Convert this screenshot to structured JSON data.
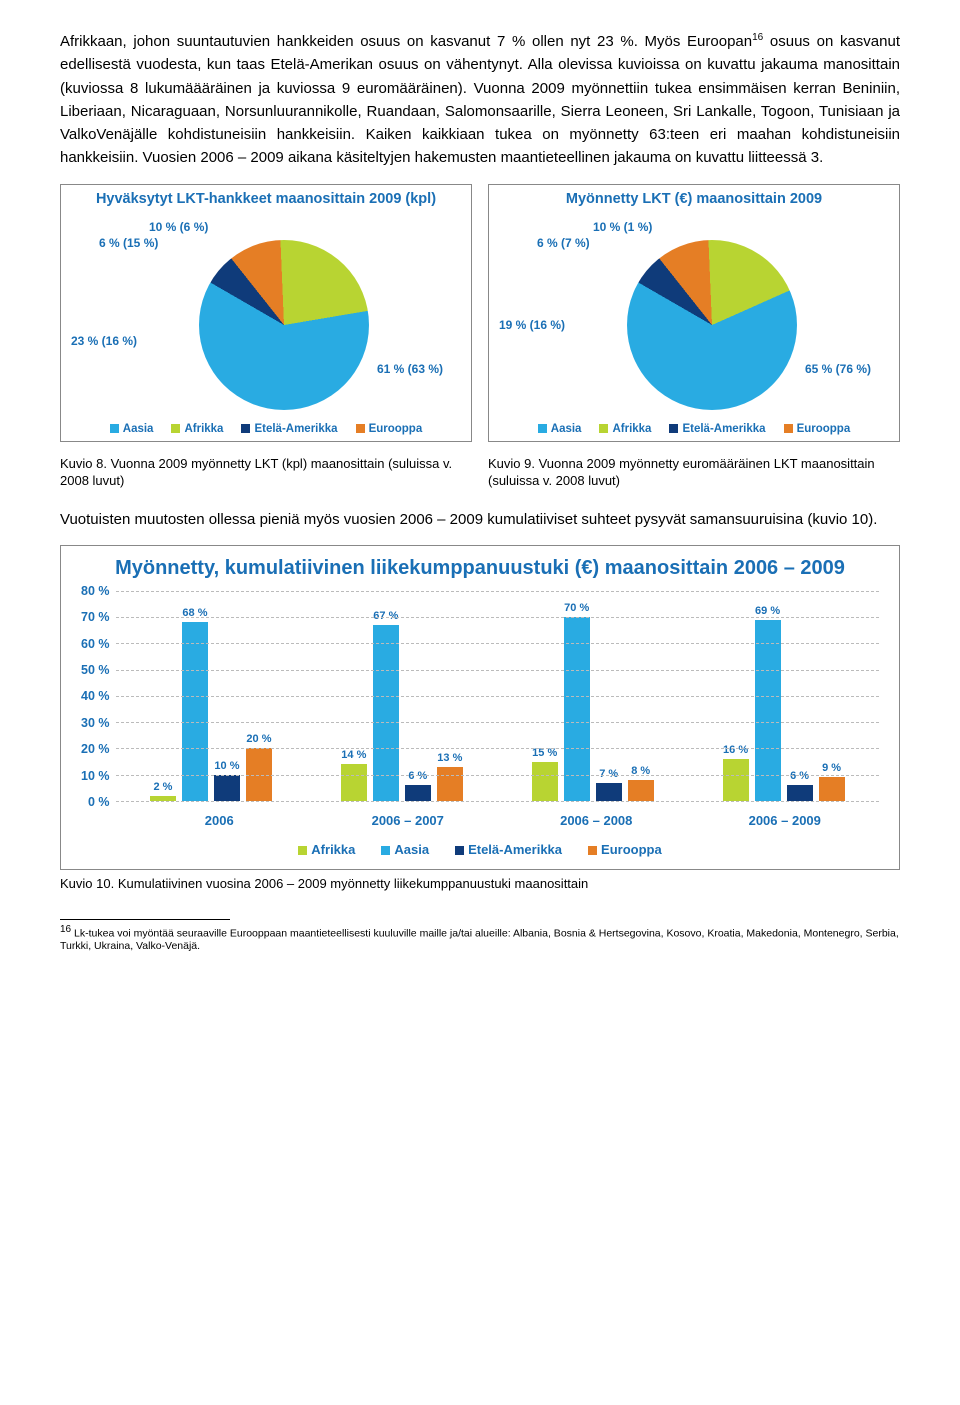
{
  "para1": "Afrikkaan, johon suuntautuvien hankkeiden osuus on kasvanut 7 % ollen nyt 23 %. Myös Euroopan",
  "para1_sup": "16",
  "para1_cont": " osuus on kasvanut edellisestä vuodesta, kun taas Etelä-Amerikan osuus on vähentynyt. Alla olevissa kuvioissa on kuvattu jakauma manosittain (kuviossa 8 lukumäääräinen ja kuviossa 9 euromääräinen). Vuonna 2009 myönnettiin tukea ensimmäisen kerran Beniniin, Liberiaan, Nicaraguaan, Norsunluurannikolle, Ruandaan, Salomonsaarille, Sierra Leoneen, Sri Lankalle, Togoon, Tunisiaan ja ValkoVenäjälle kohdistuneisiin hankkeisiin. Kaiken kaikkiaan tukea on myönnetty 63:teen eri maahan kohdistuneisiin hankkeisiin. Vuosien 2006 – 2009 aikana käsiteltyjen hakemusten maantieteellinen jakauma on kuvattu liitteessä 3.",
  "pie1": {
    "title": "Hyväksytyt LKT-hankkeet maanosittain 2009 (kpl)",
    "labels": {
      "a": "10 % (6 %)",
      "b": "6 % (15 %)",
      "c": "23 % (16 %)",
      "d": "61 % (63 %)"
    },
    "stops": "#0f3b7a 0deg 21.6deg, #e57e25 21.6deg 57.6deg, #b8d432 57.6deg 140.4deg, #29abe2 140.4deg 360deg"
  },
  "pie2": {
    "title": "Myönnetty LKT (€) maanosittain 2009",
    "labels": {
      "a": "10 % (1 %)",
      "b": "6 % (7 %)",
      "c": "19 % (16 %)",
      "d": "65 % (76 %)"
    },
    "stops": "#0f3b7a 0deg 21.6deg, #e57e25 21.6deg 57.6deg, #b8d432 57.6deg 126deg, #29abe2 126deg 360deg"
  },
  "legend": [
    {
      "color": "#29abe2",
      "label": "Aasia"
    },
    {
      "color": "#b8d432",
      "label": "Afrikka"
    },
    {
      "color": "#0f3b7a",
      "label": "Etelä-Amerikka"
    },
    {
      "color": "#e57e25",
      "label": "Eurooppa"
    }
  ],
  "cap8": "Kuvio 8. Vuonna 2009 myönnetty LKT (kpl) maanosittain (suluissa v. 2008 luvut)",
  "cap9": "Kuvio 9. Vuonna 2009 myönnetty euromääräinen LKT maanosittain (suluissa v. 2008 luvut)",
  "para2": "Vuotuisten muutosten ollessa pieniä myös vuosien 2006 – 2009 kumulatiiviset suhteet pysyvät samansuuruisina (kuvio 10).",
  "bar": {
    "title": "Myönnetty, kumulatiivinen liikekumppanuustuki (€) maanosittain 2006 – 2009",
    "ymax": 80,
    "yticks": [
      "80 %",
      "70 %",
      "60 %",
      "50 %",
      "40 %",
      "30 %",
      "20 %",
      "10 %",
      "0 %"
    ],
    "colors": {
      "afrikka": "#b8d432",
      "aasia": "#29abe2",
      "etela": "#0f3b7a",
      "eurooppa": "#e57e25"
    },
    "groups": [
      {
        "x": "2006",
        "vals": [
          {
            "c": "afrikka",
            "v": 2,
            "l": "2 %"
          },
          {
            "c": "aasia",
            "v": 68,
            "l": "68 %"
          },
          {
            "c": "etela",
            "v": 10,
            "l": "10 %"
          },
          {
            "c": "eurooppa",
            "v": 20,
            "l": "20 %"
          }
        ]
      },
      {
        "x": "2006 – 2007",
        "vals": [
          {
            "c": "afrikka",
            "v": 14,
            "l": "14 %"
          },
          {
            "c": "aasia",
            "v": 67,
            "l": "67 %"
          },
          {
            "c": "etela",
            "v": 6,
            "l": "6 %"
          },
          {
            "c": "eurooppa",
            "v": 13,
            "l": "13 %"
          }
        ]
      },
      {
        "x": "2006 – 2008",
        "vals": [
          {
            "c": "afrikka",
            "v": 15,
            "l": "15 %"
          },
          {
            "c": "aasia",
            "v": 70,
            "l": "70 %"
          },
          {
            "c": "etela",
            "v": 7,
            "l": "7 %"
          },
          {
            "c": "eurooppa",
            "v": 8,
            "l": "8 %"
          }
        ]
      },
      {
        "x": "2006 – 2009",
        "vals": [
          {
            "c": "afrikka",
            "v": 16,
            "l": "16 %"
          },
          {
            "c": "aasia",
            "v": 69,
            "l": "69 %"
          },
          {
            "c": "etela",
            "v": 6,
            "l": "6 %"
          },
          {
            "c": "eurooppa",
            "v": 9,
            "l": "9 %"
          }
        ]
      }
    ],
    "legend": [
      {
        "color": "#b8d432",
        "label": "Afrikka"
      },
      {
        "color": "#29abe2",
        "label": "Aasia"
      },
      {
        "color": "#0f3b7a",
        "label": "Etelä-Amerikka"
      },
      {
        "color": "#e57e25",
        "label": "Eurooppa"
      }
    ]
  },
  "cap10": "Kuvio 10. Kumulatiivinen vuosina 2006 – 2009 myönnetty liikekumppanuustuki maanosittain",
  "fn_num": "16",
  "fn": " Lk-tukea voi myöntää seuraaville Eurooppaan maantieteellisesti kuuluville maille ja/tai alueille: Albania, Bosnia & Hertsegovina, Kosovo, Kroatia, Makedonia, Montenegro, Serbia, Turkki, Ukraina, Valko-Venäjä."
}
